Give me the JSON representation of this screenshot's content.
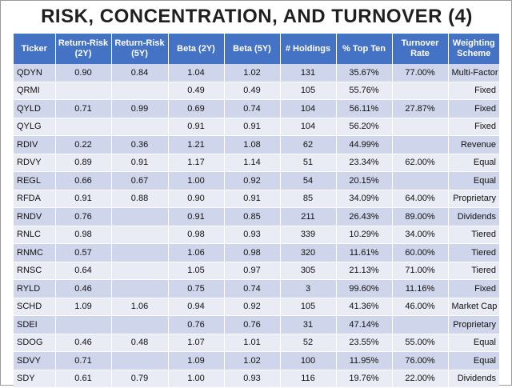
{
  "title": "RISK, CONCENTRATION, AND TURNOVER (4)",
  "header_color": "#4472c4",
  "row_colors": [
    "#cfd5ea",
    "#e9ebf5"
  ],
  "columns": [
    "Ticker",
    "Return-Risk (2Y)",
    "Return-Risk (5Y)",
    "Beta (2Y)",
    "Beta (5Y)",
    "# Holdings",
    "% Top Ten",
    "Turnover Rate",
    "Weighting Scheme"
  ],
  "rows": [
    [
      "QDYN",
      "0.90",
      "0.84",
      "1.04",
      "1.02",
      "131",
      "35.67%",
      "77.00%",
      "Multi-Factor"
    ],
    [
      "QRMI",
      "",
      "",
      "0.49",
      "0.49",
      "105",
      "55.76%",
      "",
      "Fixed"
    ],
    [
      "QYLD",
      "0.71",
      "0.99",
      "0.69",
      "0.74",
      "104",
      "56.11%",
      "27.87%",
      "Fixed"
    ],
    [
      "QYLG",
      "",
      "",
      "0.91",
      "0.91",
      "104",
      "56.20%",
      "",
      "Fixed"
    ],
    [
      "RDIV",
      "0.22",
      "0.36",
      "1.21",
      "1.08",
      "62",
      "44.99%",
      "",
      "Revenue"
    ],
    [
      "RDVY",
      "0.89",
      "0.91",
      "1.17",
      "1.14",
      "51",
      "23.34%",
      "62.00%",
      "Equal"
    ],
    [
      "REGL",
      "0.66",
      "0.67",
      "1.00",
      "0.92",
      "54",
      "20.15%",
      "",
      "Equal"
    ],
    [
      "RFDA",
      "0.91",
      "0.88",
      "0.90",
      "0.91",
      "85",
      "34.09%",
      "64.00%",
      "Proprietary"
    ],
    [
      "RNDV",
      "0.76",
      "",
      "0.91",
      "0.85",
      "211",
      "26.43%",
      "89.00%",
      "Dividends"
    ],
    [
      "RNLC",
      "0.98",
      "",
      "0.98",
      "0.93",
      "339",
      "10.29%",
      "34.00%",
      "Tiered"
    ],
    [
      "RNMC",
      "0.57",
      "",
      "1.06",
      "0.98",
      "320",
      "11.61%",
      "60.00%",
      "Tiered"
    ],
    [
      "RNSC",
      "0.64",
      "",
      "1.05",
      "0.97",
      "305",
      "21.13%",
      "71.00%",
      "Tiered"
    ],
    [
      "RYLD",
      "0.46",
      "",
      "0.75",
      "0.74",
      "3",
      "99.60%",
      "11.16%",
      "Fixed"
    ],
    [
      "SCHD",
      "1.09",
      "1.06",
      "0.94",
      "0.92",
      "105",
      "41.36%",
      "46.00%",
      "Market Cap"
    ],
    [
      "SDEI",
      "",
      "",
      "0.76",
      "0.76",
      "31",
      "47.14%",
      "",
      "Proprietary"
    ],
    [
      "SDOG",
      "0.46",
      "0.48",
      "1.07",
      "1.01",
      "52",
      "23.55%",
      "55.00%",
      "Equal"
    ],
    [
      "SDVY",
      "0.71",
      "",
      "1.09",
      "1.02",
      "100",
      "11.95%",
      "76.00%",
      "Equal"
    ],
    [
      "SDY",
      "0.61",
      "0.79",
      "1.00",
      "0.93",
      "116",
      "19.76%",
      "22.00%",
      "Dividends"
    ]
  ]
}
